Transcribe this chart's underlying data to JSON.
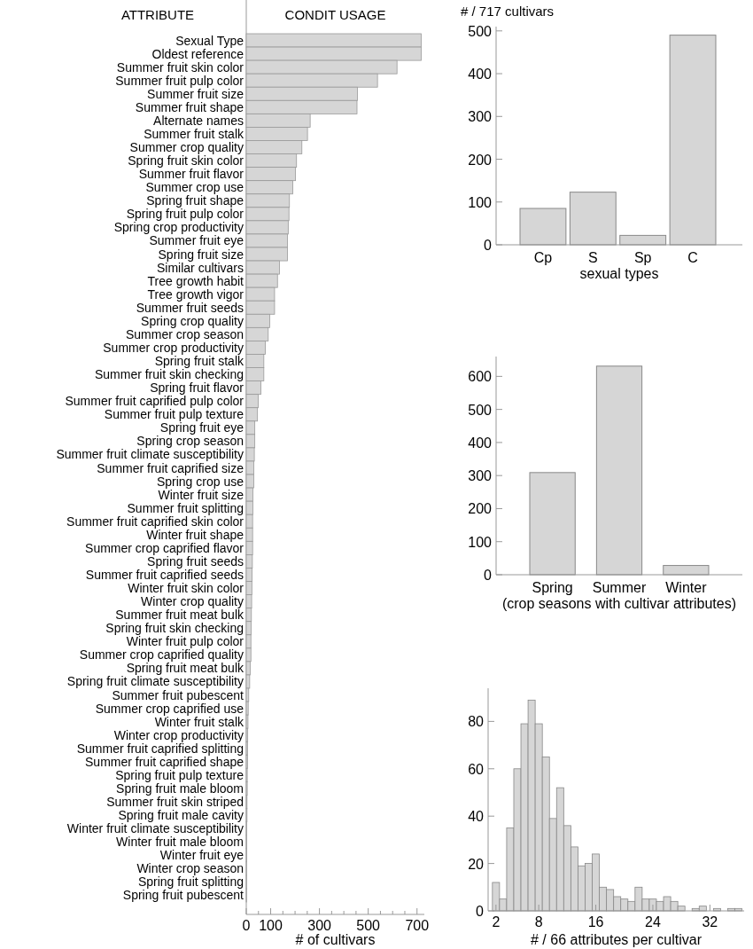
{
  "chart_data": [
    {
      "type": "bar",
      "orientation": "horizontal",
      "title": "CONDIT USAGE",
      "ylabel": "ATTRIBUTE",
      "xlabel": "# of cultivars",
      "categories": [
        "Sexual Type",
        "Oldest reference",
        "Summer fruit skin color",
        "Summer fruit pulp color",
        "Summer fruit size",
        "Summer fruit shape",
        "Alternate names",
        "Summer fruit stalk",
        "Summer crop quality",
        "Spring fruit skin color",
        "Summer fruit flavor",
        "Summer crop use",
        "Spring fruit shape",
        "Spring fruit pulp color",
        "Spring crop productivity",
        "Summer fruit eye",
        "Spring fruit size",
        "Similar cultivars",
        "Tree growth habit",
        "Tree growth vigor",
        "Summer fruit seeds",
        "Spring crop quality",
        "Summer crop season",
        "Summer crop productivity",
        "Spring fruit stalk",
        "Summer fruit skin checking",
        "Spring fruit flavor",
        "Summer fruit caprified pulp color",
        "Summer fruit pulp texture",
        "Spring fruit eye",
        "Spring crop season",
        "Summer fruit climate susceptibility",
        "Summer fruit caprified size",
        "Spring crop use",
        "Winter fruit size",
        "Summer fruit splitting",
        "Summer fruit caprified skin color",
        "Winter fruit shape",
        "Summer crop caprified flavor",
        "Spring fruit seeds",
        "Summer fruit caprified seeds",
        "Winter fruit skin color",
        "Winter crop quality",
        "Summer fruit meat bulk",
        "Spring fruit skin checking",
        "Winter fruit pulp color",
        "Summer crop caprified quality",
        "Spring fruit meat bulk",
        "Spring fruit climate susceptibility",
        "Summer fruit pubescent",
        "Summer crop caprified use",
        "Winter fruit stalk",
        "Winter crop productivity",
        "Summer fruit caprified splitting",
        "Summer fruit caprified shape",
        "Spring fruit pulp texture",
        "Spring fruit male bloom",
        "Summer fruit skin striped",
        "Spring fruit male cavity",
        "Winter fruit climate susceptibility",
        "Winter fruit male bloom",
        "Winter fruit eye",
        "Winter crop season",
        "Spring fruit splitting",
        "Spring fruit pubescent"
      ],
      "values": [
        717,
        717,
        618,
        538,
        456,
        454,
        262,
        251,
        228,
        206,
        202,
        191,
        177,
        175,
        172,
        169,
        169,
        136,
        128,
        116,
        116,
        96,
        90,
        78,
        72,
        72,
        60,
        49,
        46,
        35,
        35,
        33,
        31,
        31,
        27,
        27,
        26,
        26,
        26,
        25,
        24,
        23,
        22,
        21,
        20,
        19,
        19,
        16,
        14,
        10,
        8,
        7,
        6,
        5,
        5,
        4,
        4,
        3,
        3,
        2,
        2,
        2,
        1,
        1,
        1
      ],
      "color": "#d6d6d6",
      "xlim": [
        0,
        730
      ],
      "xticks": [
        0,
        {
          "value": 50,
          "label": null
        },
        100,
        {
          "value": 150,
          "label": null
        },
        {
          "value": 200,
          "label": null
        },
        {
          "value": 250,
          "label": null
        },
        300,
        {
          "value": 350,
          "label": null
        },
        {
          "value": 400,
          "label": null
        },
        {
          "value": 450,
          "label": null
        },
        500,
        {
          "value": 550,
          "label": null
        },
        {
          "value": 600,
          "label": null
        },
        {
          "value": 650,
          "label": null
        },
        700
      ]
    },
    {
      "type": "bar",
      "ylabel": "# / 717 cultivars",
      "xlabel": "sexual types",
      "categories": [
        "Cp",
        "S",
        "Sp",
        "C"
      ],
      "values": [
        85,
        123,
        22,
        490
      ],
      "color": "#d6d6d6",
      "ylim": [
        0,
        510
      ],
      "yticks": [
        0,
        100,
        200,
        300,
        400,
        500
      ]
    },
    {
      "type": "bar",
      "xlabel": "(crop seasons with cultivar attributes)",
      "categories": [
        "Spring",
        "Summer",
        "Winter"
      ],
      "values": [
        309,
        631,
        28
      ],
      "color": "#d6d6d6",
      "ylim": [
        0,
        660
      ],
      "yticks": [
        0,
        100,
        200,
        300,
        400,
        500,
        600
      ]
    },
    {
      "type": "histogram",
      "xlabel": "# / 66 attributes per cultivar",
      "bins": [
        1.5,
        2.5,
        3.5,
        4.5,
        5.5,
        6.5,
        7.5,
        8.5,
        9.5,
        10.5,
        11.5,
        12.5,
        13.5,
        14.5,
        15.5,
        16.5,
        17.5,
        18.5,
        19.5,
        20.5,
        21.5,
        22.5,
        23.5,
        24.5,
        25.5,
        26.5,
        27.5,
        28.5,
        29.5,
        30.5,
        31.5,
        32.5,
        33.5,
        34.5,
        35.5,
        36.5
      ],
      "values": [
        12,
        5,
        35,
        60,
        79,
        89,
        79,
        65,
        39,
        52,
        36,
        27,
        19,
        20,
        24,
        10,
        9,
        6,
        5,
        4,
        10,
        5,
        5,
        4,
        6,
        4,
        2,
        0,
        1,
        2,
        0,
        1,
        0,
        1,
        1
      ],
      "color": "#d6d6d6",
      "xlim": [
        0.9,
        36.8
      ],
      "xticks": [
        2,
        8,
        16,
        24,
        32
      ],
      "ylim": [
        0,
        94
      ],
      "yticks": [
        0,
        20,
        40,
        60,
        80
      ]
    }
  ]
}
